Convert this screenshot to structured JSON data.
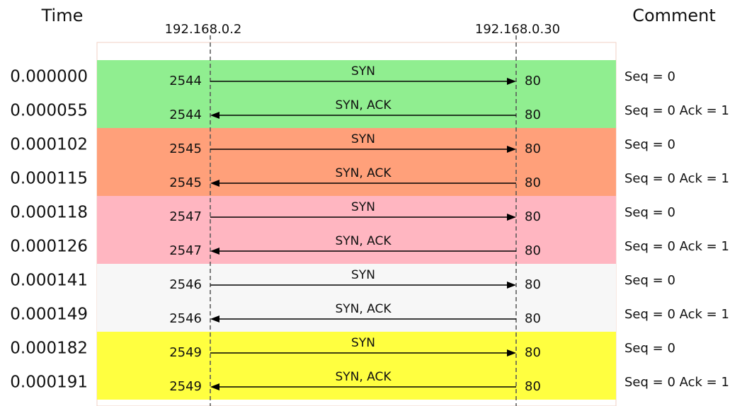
{
  "header": {
    "time": "Time",
    "comment": "Comment",
    "hosts": [
      "192.168.0.2",
      "192.168.0.30"
    ]
  },
  "groups": [
    {
      "color": "#90ee90",
      "rows": [
        {
          "time": "0.000000",
          "left_port": "2544",
          "right_port": "80",
          "label": "SYN",
          "direction": "right",
          "comment": "Seq = 0"
        },
        {
          "time": "0.000055",
          "left_port": "2544",
          "right_port": "80",
          "label": "SYN, ACK",
          "direction": "left",
          "comment": "Seq = 0 Ack = 1"
        }
      ]
    },
    {
      "color": "#ffa07a",
      "rows": [
        {
          "time": "0.000102",
          "left_port": "2545",
          "right_port": "80",
          "label": "SYN",
          "direction": "right",
          "comment": "Seq = 0"
        },
        {
          "time": "0.000115",
          "left_port": "2545",
          "right_port": "80",
          "label": "SYN, ACK",
          "direction": "left",
          "comment": "Seq = 0 Ack = 1"
        }
      ]
    },
    {
      "color": "#ffb6c1",
      "rows": [
        {
          "time": "0.000118",
          "left_port": "2547",
          "right_port": "80",
          "label": "SYN",
          "direction": "right",
          "comment": "Seq = 0"
        },
        {
          "time": "0.000126",
          "left_port": "2547",
          "right_port": "80",
          "label": "SYN, ACK",
          "direction": "left",
          "comment": "Seq = 0 Ack = 1"
        }
      ]
    },
    {
      "color": "#f7f7f7",
      "rows": [
        {
          "time": "0.000141",
          "left_port": "2546",
          "right_port": "80",
          "label": "SYN",
          "direction": "right",
          "comment": "Seq = 0"
        },
        {
          "time": "0.000149",
          "left_port": "2546",
          "right_port": "80",
          "label": "SYN, ACK",
          "direction": "left",
          "comment": "Seq = 0 Ack = 1"
        }
      ]
    },
    {
      "color": "#ffff40",
      "rows": [
        {
          "time": "0.000182",
          "left_port": "2549",
          "right_port": "80",
          "label": "SYN",
          "direction": "right",
          "comment": "Seq = 0"
        },
        {
          "time": "0.000191",
          "left_port": "2549",
          "right_port": "80",
          "label": "SYN, ACK",
          "direction": "left",
          "comment": "Seq = 0 Ack = 1"
        }
      ]
    }
  ]
}
